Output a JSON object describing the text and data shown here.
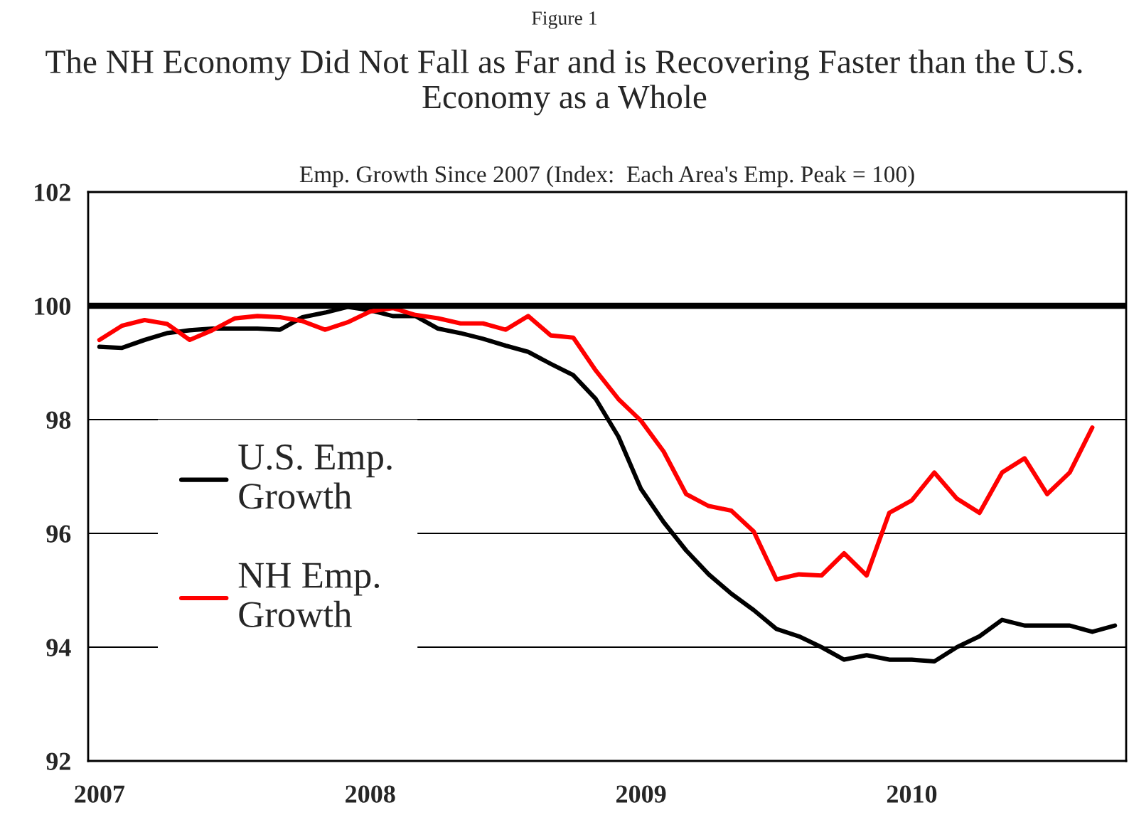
{
  "chart_data": {
    "type": "line",
    "title": "The NH Economy Did Not Fall as Far and is Recovering Faster than the U.S. Economy as a Whole",
    "subtitle": "Emp. Growth Since 2007 (Index:  Each Area's Emp. Peak = 100)",
    "annotations": [
      "Figure 1"
    ],
    "categories": [
      "2007",
      null,
      null,
      null,
      null,
      null,
      null,
      null,
      null,
      null,
      null,
      null,
      "2008",
      null,
      null,
      null,
      null,
      null,
      null,
      null,
      null,
      null,
      null,
      null,
      "2009",
      null,
      null,
      null,
      null,
      null,
      null,
      null,
      null,
      null,
      null,
      null,
      "2010",
      null,
      null,
      null,
      null,
      null,
      null,
      null,
      null,
      null
    ],
    "series": [
      {
        "name": "U.S. Emp.\nGrowth",
        "color": "#000000",
        "values": [
          99.28,
          99.26,
          99.4,
          99.52,
          99.57,
          99.6,
          99.6,
          99.6,
          99.58,
          99.8,
          99.88,
          99.98,
          99.92,
          99.82,
          99.82,
          99.6,
          99.52,
          99.42,
          99.3,
          99.19,
          98.98,
          98.78,
          98.36,
          97.7,
          96.78,
          96.2,
          95.7,
          95.28,
          94.94,
          94.65,
          94.32,
          94.19,
          94.0,
          93.78,
          93.86,
          93.78,
          93.78,
          93.75,
          94.0,
          94.19,
          94.48,
          94.38,
          94.38,
          94.38,
          94.27,
          94.38
        ]
      },
      {
        "name": "NH Emp.\nGrowth",
        "color": "#ff0000",
        "values": [
          99.4,
          99.65,
          99.75,
          99.68,
          99.4,
          99.57,
          99.78,
          99.82,
          99.8,
          99.73,
          99.58,
          99.71,
          99.9,
          99.96,
          99.84,
          99.78,
          99.69,
          99.69,
          99.58,
          99.82,
          99.48,
          99.44,
          98.86,
          98.36,
          97.98,
          97.44,
          96.69,
          96.48,
          96.4,
          96.03,
          95.19,
          95.28,
          95.26,
          95.65,
          95.26,
          96.36,
          96.58,
          97.07,
          96.61,
          96.36,
          97.07,
          97.32,
          96.69,
          97.07,
          97.86,
          null
        ]
      }
    ],
    "ylim": [
      92,
      102
    ],
    "yticks": [
      92,
      94,
      96,
      98,
      100,
      102
    ],
    "ref_lines": [
      {
        "axis": "y",
        "value": 100,
        "color": "#000000"
      }
    ],
    "grid": "y",
    "legend": "left",
    "marker": "none",
    "line_style": "solid"
  }
}
